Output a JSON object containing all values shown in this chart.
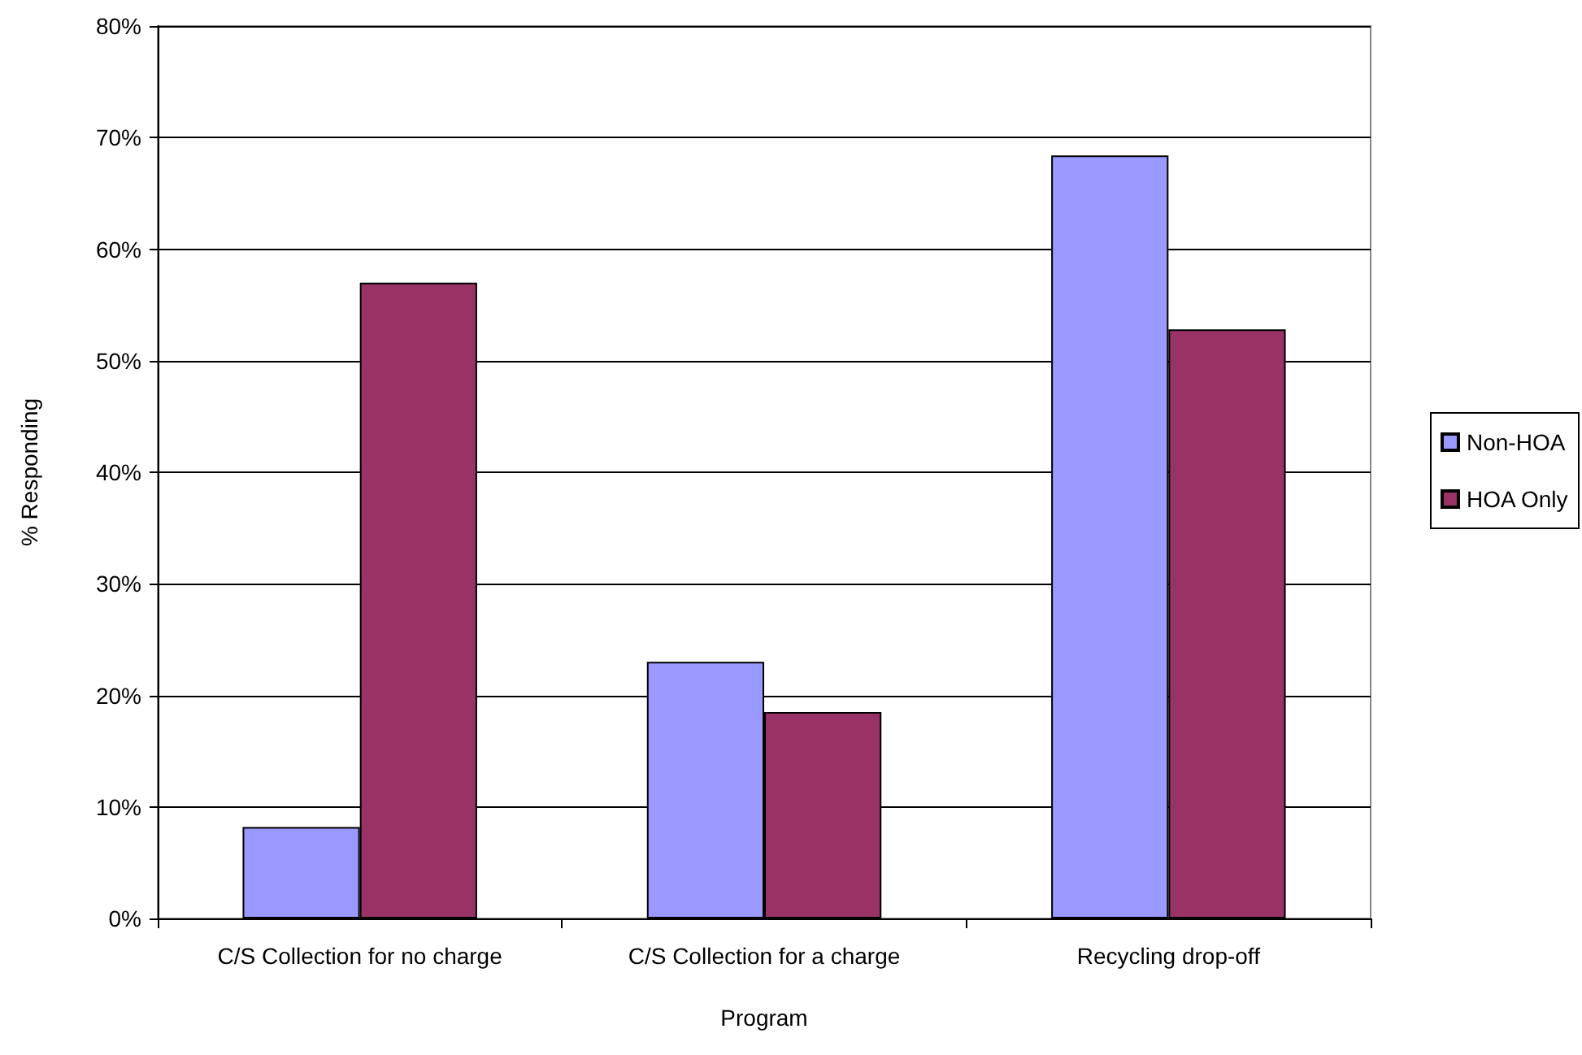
{
  "chart_data": {
    "type": "bar",
    "categories": [
      "C/S Collection for no charge",
      "C/S Collection for a charge",
      "Recycling drop-off"
    ],
    "series": [
      {
        "name": "Non-HOA",
        "color": "#9999ff",
        "values": [
          8.2,
          23.0,
          68.4
        ]
      },
      {
        "name": "HOA Only",
        "color": "#993366",
        "values": [
          57.0,
          18.5,
          52.8
        ]
      }
    ],
    "xlabel": "Program",
    "ylabel": "% Responding",
    "ylim": [
      0,
      80
    ],
    "yticks": [
      {
        "value": 0,
        "label": "0%"
      },
      {
        "value": 10,
        "label": "10%"
      },
      {
        "value": 20,
        "label": "20%"
      },
      {
        "value": 30,
        "label": "30%"
      },
      {
        "value": 40,
        "label": "40%"
      },
      {
        "value": 50,
        "label": "50%"
      },
      {
        "value": 60,
        "label": "60%"
      },
      {
        "value": 70,
        "label": "70%"
      },
      {
        "value": 80,
        "label": "80%"
      }
    ],
    "grid": "y",
    "legend": "right"
  }
}
